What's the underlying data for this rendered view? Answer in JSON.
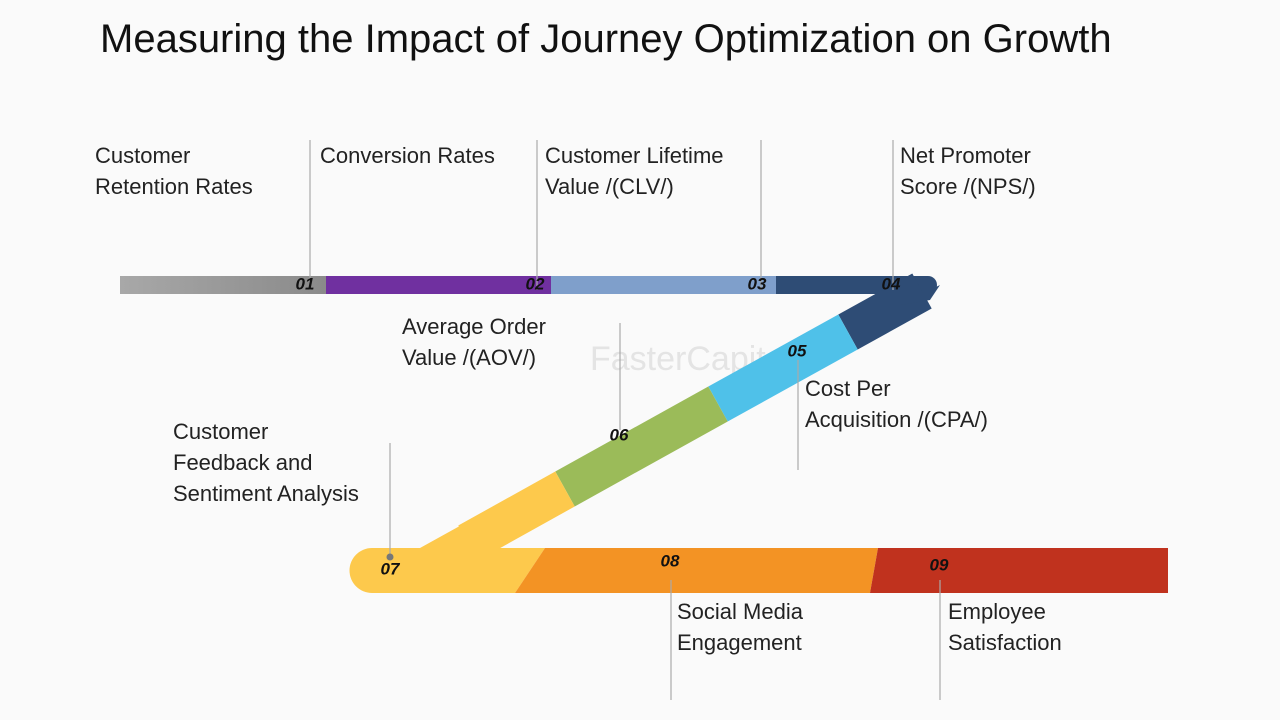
{
  "title": "Measuring the Impact of Journey Optimization on Growth",
  "watermark": "FasterCapital",
  "steps": [
    {
      "number": "01",
      "label": [
        "Customer",
        "Retention Rates"
      ]
    },
    {
      "number": "02",
      "label": [
        "Conversion Rates"
      ]
    },
    {
      "number": "03",
      "label": [
        "Customer Lifetime",
        "Value /(CLV/)"
      ]
    },
    {
      "number": "04",
      "label": [
        "Net Promoter",
        "Score /(NPS/)"
      ]
    },
    {
      "number": "05",
      "label": [
        "Cost Per",
        "Acquisition /(CPA/)"
      ]
    },
    {
      "number": "06",
      "label": [
        "Average Order",
        "Value /(AOV/)"
      ]
    },
    {
      "number": "07",
      "label": [
        "Customer",
        "Feedback and",
        "Sentiment Analysis"
      ]
    },
    {
      "number": "08",
      "label": [
        "Social Media",
        "Engagement"
      ]
    },
    {
      "number": "09",
      "label": [
        "Employee",
        "Satisfaction"
      ]
    }
  ]
}
